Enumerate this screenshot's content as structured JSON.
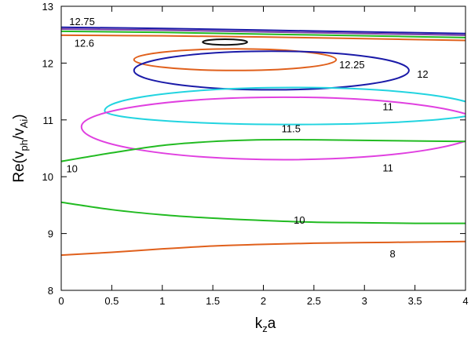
{
  "chart_data": {
    "type": "line",
    "xlim": [
      0,
      4
    ],
    "ylim": [
      8,
      13
    ],
    "x_ticks": [
      0,
      0.5,
      1,
      1.5,
      2,
      2.5,
      3,
      3.5,
      4
    ],
    "y_ticks": [
      8,
      9,
      10,
      11,
      12,
      13
    ],
    "xlabel": {
      "main": "k",
      "sub": "z",
      "tail": "a"
    },
    "ylabel": {
      "main": "Re(v",
      "sub1": "ph",
      "mid": "/v",
      "sub2": "Ai",
      "tail": ")"
    },
    "grid": false,
    "curves": [
      {
        "kind": "line",
        "color": "#1a1aa8",
        "x": [
          0,
          1,
          2,
          3,
          4
        ],
        "y": [
          12.63,
          12.61,
          12.58,
          12.55,
          12.52
        ]
      },
      {
        "kind": "line",
        "color": "#7a3fa8",
        "x": [
          0,
          1,
          2,
          3,
          4
        ],
        "y": [
          12.6,
          12.58,
          12.55,
          12.52,
          12.49
        ]
      },
      {
        "kind": "line",
        "color": "#22bb22",
        "x": [
          0,
          1,
          2,
          3,
          4
        ],
        "y": [
          12.56,
          12.54,
          12.51,
          12.48,
          12.45
        ]
      },
      {
        "kind": "line",
        "color": "#e0601c",
        "x": [
          0,
          1,
          2,
          3,
          4
        ],
        "y": [
          12.49,
          12.48,
          12.46,
          12.43,
          12.4
        ]
      },
      {
        "kind": "loop",
        "color": "#111111",
        "x": [
          1.4,
          1.62,
          1.84,
          1.62
        ],
        "y": [
          12.37,
          12.42,
          12.37,
          12.32
        ]
      },
      {
        "kind": "loop",
        "color": "#e0601c",
        "x": [
          0.72,
          1.72,
          2.72,
          1.72
        ],
        "y": [
          12.06,
          12.25,
          12.06,
          11.87
        ]
      },
      {
        "kind": "loop",
        "color": "#1a1aa8",
        "x": [
          0.72,
          2.08,
          3.44,
          2.08
        ],
        "y": [
          11.87,
          12.21,
          11.87,
          11.53
        ]
      },
      {
        "kind": "loop",
        "color": "#22d4e0",
        "x": [
          0.43,
          2.3,
          4.15,
          2.3
        ],
        "y": [
          11.16,
          11.57,
          11.16,
          10.92
        ]
      },
      {
        "kind": "loop",
        "color": "#e040e0",
        "x": [
          0.2,
          2.2,
          4.2,
          2.2
        ],
        "y": [
          10.88,
          11.4,
          10.88,
          10.3
        ]
      },
      {
        "kind": "line",
        "color": "#22bb22",
        "x": [
          0,
          0.5,
          1,
          1.5,
          2,
          2.5,
          3,
          3.5,
          4
        ],
        "y": [
          10.27,
          10.42,
          10.55,
          10.62,
          10.65,
          10.65,
          10.64,
          10.63,
          10.62
        ]
      },
      {
        "kind": "line",
        "color": "#22bb22",
        "x": [
          0,
          0.5,
          1,
          1.5,
          2,
          2.5,
          3,
          3.5,
          4
        ],
        "y": [
          9.55,
          9.42,
          9.33,
          9.27,
          9.23,
          9.2,
          9.19,
          9.18,
          9.18
        ]
      },
      {
        "kind": "line",
        "color": "#e0601c",
        "x": [
          0,
          0.5,
          1,
          1.5,
          2,
          2.5,
          3,
          3.5,
          4
        ],
        "y": [
          8.62,
          8.67,
          8.73,
          8.78,
          8.81,
          8.83,
          8.84,
          8.85,
          8.86
        ]
      }
    ],
    "annotations": [
      {
        "text": "12.75",
        "x": 0.08,
        "y": 12.74
      },
      {
        "text": "12.6",
        "x": 0.13,
        "y": 12.36
      },
      {
        "text": "12.25",
        "x": 2.75,
        "y": 11.98
      },
      {
        "text": "12",
        "x": 3.52,
        "y": 11.81
      },
      {
        "text": "11",
        "x": 3.18,
        "y": 11.24
      },
      {
        "text": "11.5",
        "x": 2.18,
        "y": 10.85
      },
      {
        "text": "11",
        "x": 3.18,
        "y": 10.16
      },
      {
        "text": "10",
        "x": 0.05,
        "y": 10.15
      },
      {
        "text": "10",
        "x": 2.3,
        "y": 9.24
      },
      {
        "text": "8",
        "x": 3.25,
        "y": 8.65
      }
    ]
  }
}
